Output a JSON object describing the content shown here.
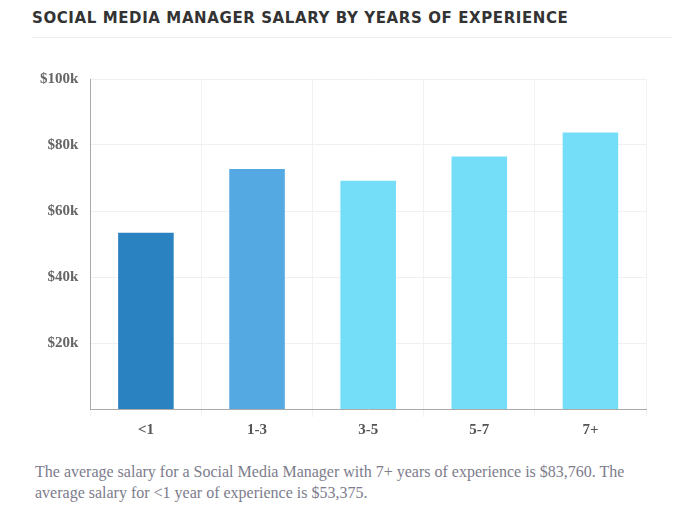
{
  "chart_data": {
    "type": "bar",
    "title": "SOCIAL MEDIA MANAGER SALARY BY YEARS OF EXPERIENCE",
    "categories": [
      "<1",
      "1-3",
      "3-5",
      "5-7",
      "7+"
    ],
    "values": [
      53375,
      72700,
      69200,
      76500,
      83760
    ],
    "colors": [
      "#2b82c0",
      "#55a9e2",
      "#74def9",
      "#74def9",
      "#74def9"
    ],
    "ylim": [
      0,
      100000
    ],
    "yticks": [
      {
        "value": 20000,
        "label": "$20k"
      },
      {
        "value": 40000,
        "label": "$40k"
      },
      {
        "value": 60000,
        "label": "$60k"
      },
      {
        "value": 80000,
        "label": "$80k"
      },
      {
        "value": 100000,
        "label": "$100k"
      }
    ],
    "grid": true,
    "caption": "The average salary for a Social Media Manager with 7+ years of experience is $83,760. The average salary for <1 year of experience is $53,375."
  }
}
